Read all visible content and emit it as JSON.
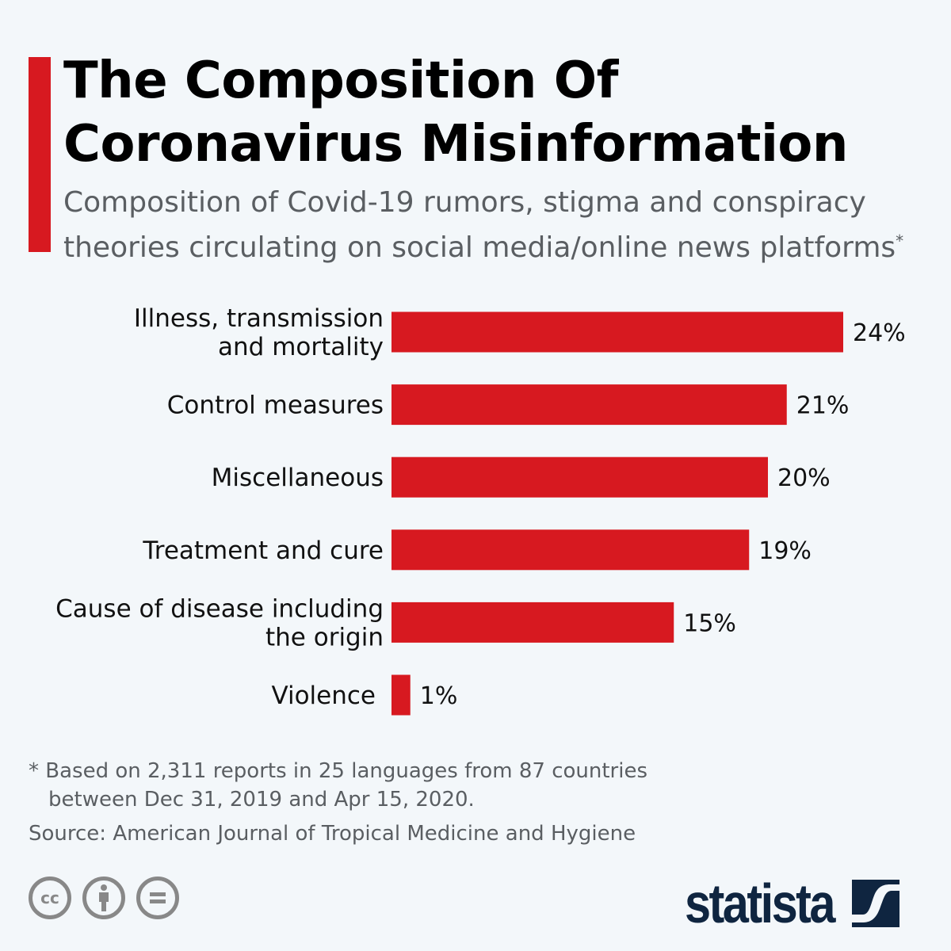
{
  "title_line1": "The Composition Of",
  "title_line2": "Coronavirus Misinformation",
  "subtitle": "Composition of Covid-19 rumors, stigma and conspiracy theories circulating on social media/online news platforms",
  "subtitle_mark": "*",
  "footnote_line1": "* Based on 2,311 reports in 25 languages from 87 countries",
  "footnote_line2": "between Dec 31, 2019 and Apr 15, 2020.",
  "source": "Source: American Journal of Tropical Medicine and Hygiene",
  "logo_text": "statista",
  "license_icons": [
    "cc-icon",
    "attribution-icon",
    "no-derivatives-icon"
  ],
  "colors": {
    "accent": "#d71920",
    "background": "#f3f7fa",
    "brand": "#0f2540"
  },
  "chart_data": {
    "type": "bar",
    "orientation": "horizontal",
    "categories": [
      [
        "Illness, transmission",
        "and mortality"
      ],
      [
        "Control measures"
      ],
      [
        "Miscellaneous"
      ],
      [
        "Treatment and cure"
      ],
      [
        "Cause of disease including",
        "the origin"
      ],
      [
        "Violence"
      ]
    ],
    "values": [
      24,
      21,
      20,
      19,
      15,
      1
    ],
    "labels": [
      "24%",
      "21%",
      "20%",
      "19%",
      "15%",
      "1%"
    ],
    "unit": "%",
    "xlim": [
      0,
      24
    ],
    "grid": false,
    "bar_color": "#d71920"
  }
}
